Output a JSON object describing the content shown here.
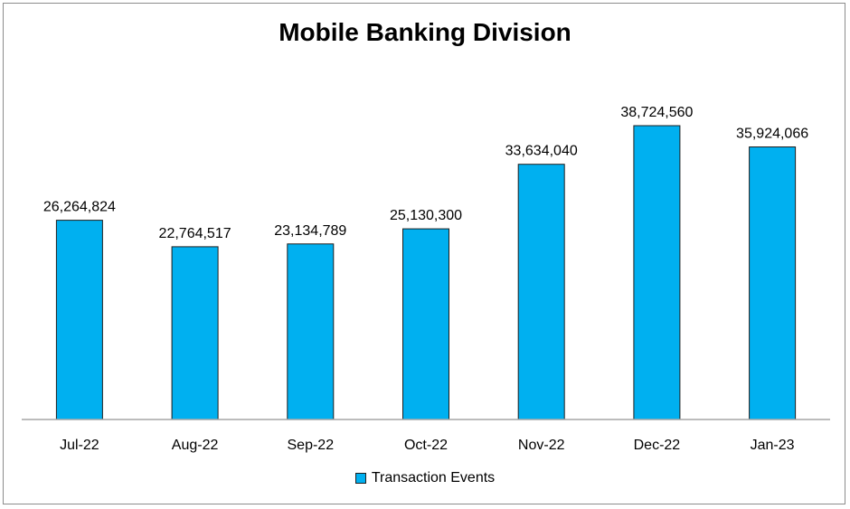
{
  "chart_data": {
    "type": "bar",
    "title": "Mobile Banking Division",
    "categories": [
      "Jul-22",
      "Aug-22",
      "Sep-22",
      "Oct-22",
      "Nov-22",
      "Dec-22",
      "Jan-23"
    ],
    "series": [
      {
        "name": "Transaction Events",
        "values": [
          26264824,
          22764517,
          23134789,
          25130300,
          33634040,
          38724560,
          35924066
        ],
        "labels": [
          "26,264,824",
          "22,764,517",
          "23,134,789",
          "25,130,300",
          "33,634,040",
          "38,724,560",
          "35,924,066"
        ],
        "color": "#00B0F0"
      }
    ],
    "xlabel": "",
    "ylabel": "",
    "ylim": [
      0,
      40000000
    ],
    "grid": false,
    "legend_position": "bottom"
  }
}
